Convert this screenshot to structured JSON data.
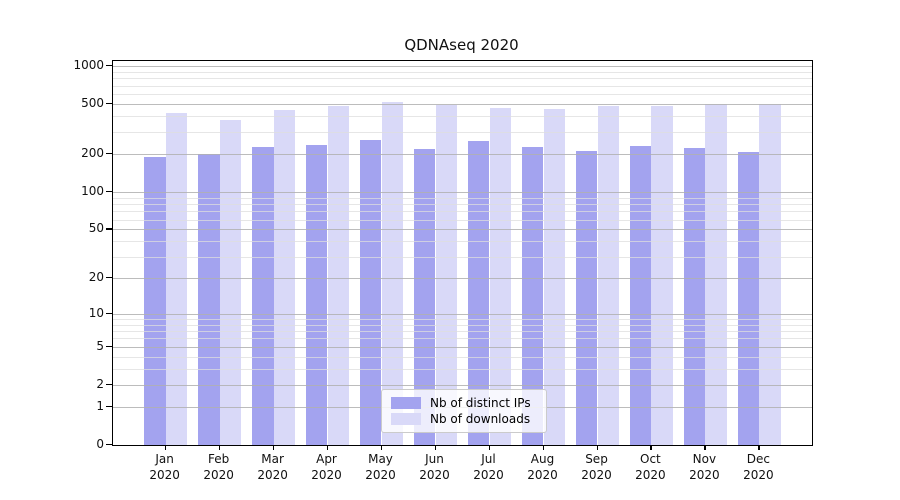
{
  "chart_data": {
    "type": "bar",
    "title": "QDNAseq 2020",
    "categories": [
      "Jan",
      "Feb",
      "Mar",
      "Apr",
      "May",
      "Jun",
      "Jul",
      "Aug",
      "Sep",
      "Oct",
      "Nov",
      "Dec"
    ],
    "x_year_label": "2020",
    "series": [
      {
        "name": "Nb of distinct IPs",
        "color": "#a3a3ef",
        "values": [
          190,
          201,
          228,
          236,
          258,
          222,
          255,
          228,
          212,
          233,
          226,
          210
        ]
      },
      {
        "name": "Nb of downloads",
        "color": "#d9d9f8",
        "values": [
          425,
          378,
          452,
          485,
          525,
          495,
          468,
          455,
          480,
          483,
          503,
          500
        ]
      }
    ],
    "y_axis": {
      "scale": "log1p",
      "ticks": [
        0,
        1,
        2,
        5,
        10,
        20,
        50,
        100,
        200,
        500,
        1000
      ],
      "max": 1100
    },
    "grid": {
      "on": true,
      "major_color": "#b0b0b0",
      "minor_color": "#dedede"
    },
    "legend": {
      "position": "bottom-center"
    }
  }
}
